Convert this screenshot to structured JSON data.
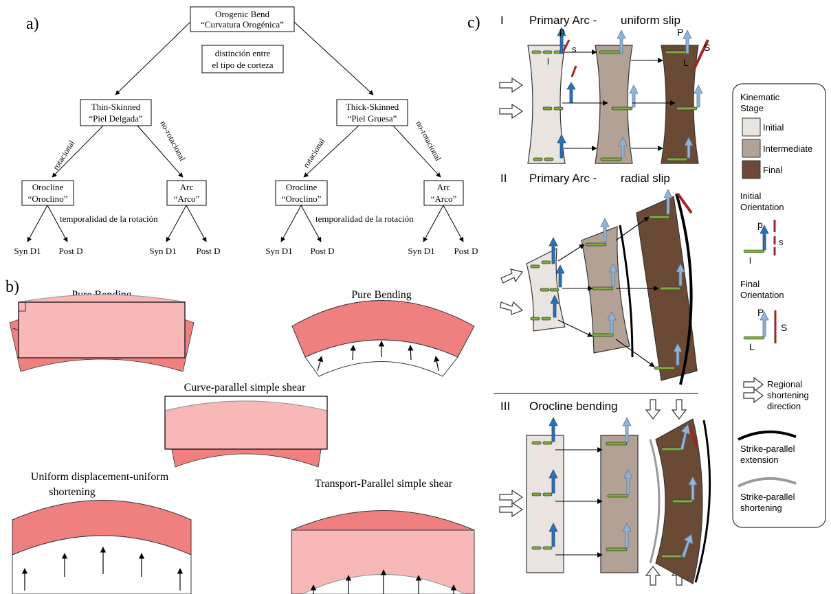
{
  "panel_labels": {
    "a": "a)",
    "b": "b)",
    "c": "c)"
  },
  "colors": {
    "pink_dark": "#f08080",
    "pink_light": "#f9b8b8",
    "stage_initial": "#e9e4df",
    "stage_intermediate": "#b3a196",
    "stage_final": "#6b4a35",
    "green_marker": "#7fae3a",
    "blue_arrow_dark": "#2d70b3",
    "blue_arrow_light": "#92b3d4",
    "red_marker": "#a32323"
  },
  "tree": {
    "root_line1": "Orogenic Bend",
    "root_line2": "“Curvatura Orogénica”",
    "note_line1": "distinción entre",
    "note_line2": "el tipo de corteza",
    "thin_line1": "Thin-Skinned",
    "thin_line2": "“Piel Delgada”",
    "thick_line1": "Thick-Skinned",
    "thick_line2": "“Piel Gruesa”",
    "rotational": "rotacional",
    "non_rotational": "no-rotacional",
    "orocline_line1": "Orocline",
    "orocline_line2": "“Oroclino”",
    "arc_line1": "Arc",
    "arc_line2": "“Arco”",
    "temporality": "temporalidad de la rotación",
    "syn": "Syn D1",
    "post": "Post D"
  },
  "bending": {
    "pure_bending": "Pure Bending",
    "curve_parallel": "Curve-parallel simple shear",
    "uniform_line1": "Uniform displacement-uniform",
    "uniform_line2": "shortening",
    "transport_parallel": "Transport-Parallel simple shear"
  },
  "kinematic": {
    "row1_num": "I",
    "row1_left": "Primary Arc -",
    "row1_right": "uniform slip",
    "row2_num": "II",
    "row2_left": "Primary Arc -",
    "row2_right": "radial slip",
    "row3_num": "III",
    "row3_title": "Orocline bending",
    "lbl_p": "p",
    "lbl_s": "s",
    "lbl_l": "l",
    "lbl_P": "P",
    "lbl_S": "S",
    "lbl_L": "L"
  },
  "legend": {
    "stage_title_line1": "Kinematic",
    "stage_title_line2": "Stage",
    "initial": "Initial",
    "intermediate": "Intermediate",
    "final": "Final",
    "init_orient_line1": "Initial",
    "init_orient_line2": "Orientation",
    "final_orient_line1": "Final",
    "final_orient_line2": "Orientation",
    "regional_line1": "Regional",
    "regional_line2": "shortening",
    "regional_line3": "direction",
    "ext_line1": "Strike-parallel",
    "ext_line2": "extension",
    "short_line1": "Strike-parallel",
    "short_line2": "shortening"
  }
}
